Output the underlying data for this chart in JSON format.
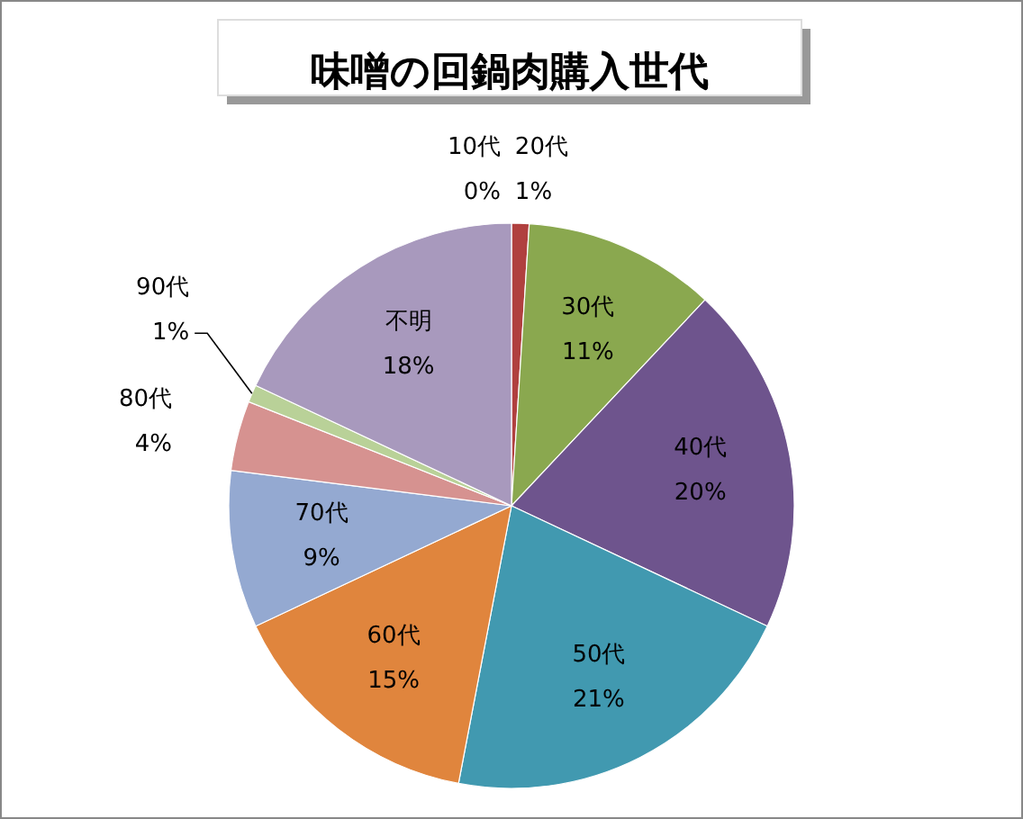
{
  "chart_data": {
    "type": "pie",
    "title": "味噌の回鍋肉購入世代",
    "categories": [
      "10代",
      "20代",
      "30代",
      "40代",
      "50代",
      "60代",
      "70代",
      "80代",
      "90代",
      "不明"
    ],
    "values": [
      0,
      1,
      11,
      20,
      21,
      15,
      9,
      4,
      1,
      18
    ],
    "value_labels": [
      "0%",
      "1%",
      "11%",
      "20%",
      "21%",
      "15%",
      "9%",
      "4%",
      "1%",
      "18%"
    ],
    "colors": [
      "#4f81bd",
      "#b0403f",
      "#8aa84f",
      "#6e548d",
      "#4199b0",
      "#e0853d",
      "#94a9d1",
      "#d69290",
      "#b9d198",
      "#a899bd"
    ]
  }
}
